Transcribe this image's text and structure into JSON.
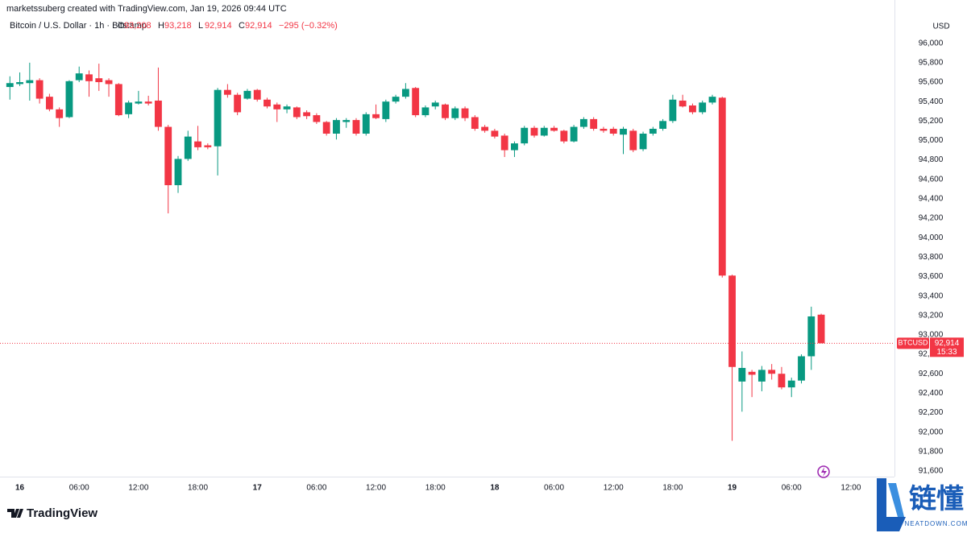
{
  "chart_data": {
    "type": "candlestick",
    "credit": "marketssuberg created with TradingView.com, Jan 19, 2026 09:44 UTC",
    "symbol_line": "Bitcoin / U.S. Dollar · 1h · Bitstamp",
    "ohlc_header": [
      {
        "name": "O",
        "value": 93208,
        "label": "93,208"
      },
      {
        "name": "H",
        "value": 93218,
        "label": "93,218"
      },
      {
        "name": "L",
        "value": 92914,
        "label": "92,914"
      },
      {
        "name": "C",
        "value": 92914,
        "label": "92,914"
      }
    ],
    "change": "−295 (−0.32%)",
    "y_unit": "USD",
    "up_color": "#089981",
    "down_color": "#f23645",
    "grid": false,
    "x": [
      "2026-01-15T23:00",
      "2026-01-16T00:00",
      "2026-01-16T01:00",
      "2026-01-16T02:00",
      "2026-01-16T03:00",
      "2026-01-16T04:00",
      "2026-01-16T05:00",
      "2026-01-16T06:00",
      "2026-01-16T07:00",
      "2026-01-16T08:00",
      "2026-01-16T09:00",
      "2026-01-16T10:00",
      "2026-01-16T11:00",
      "2026-01-16T12:00",
      "2026-01-16T13:00",
      "2026-01-16T14:00",
      "2026-01-16T15:00",
      "2026-01-16T16:00",
      "2026-01-16T17:00",
      "2026-01-16T18:00",
      "2026-01-16T19:00",
      "2026-01-16T20:00",
      "2026-01-16T21:00",
      "2026-01-16T22:00",
      "2026-01-16T23:00",
      "2026-01-17T00:00",
      "2026-01-17T01:00",
      "2026-01-17T02:00",
      "2026-01-17T03:00",
      "2026-01-17T04:00",
      "2026-01-17T05:00",
      "2026-01-17T06:00",
      "2026-01-17T07:00",
      "2026-01-17T08:00",
      "2026-01-17T09:00",
      "2026-01-17T10:00",
      "2026-01-17T11:00",
      "2026-01-17T12:00",
      "2026-01-17T13:00",
      "2026-01-17T14:00",
      "2026-01-17T15:00",
      "2026-01-17T16:00",
      "2026-01-17T17:00",
      "2026-01-17T18:00",
      "2026-01-17T19:00",
      "2026-01-17T20:00",
      "2026-01-17T21:00",
      "2026-01-17T22:00",
      "2026-01-17T23:00",
      "2026-01-18T00:00",
      "2026-01-18T01:00",
      "2026-01-18T02:00",
      "2026-01-18T03:00",
      "2026-01-18T04:00",
      "2026-01-18T05:00",
      "2026-01-18T06:00",
      "2026-01-18T07:00",
      "2026-01-18T08:00",
      "2026-01-18T09:00",
      "2026-01-18T10:00",
      "2026-01-18T11:00",
      "2026-01-18T12:00",
      "2026-01-18T13:00",
      "2026-01-18T14:00",
      "2026-01-18T15:00",
      "2026-01-18T16:00",
      "2026-01-18T17:00",
      "2026-01-18T18:00",
      "2026-01-18T19:00",
      "2026-01-18T20:00",
      "2026-01-18T21:00",
      "2026-01-18T22:00",
      "2026-01-18T23:00",
      "2026-01-19T00:00",
      "2026-01-19T01:00",
      "2026-01-19T02:00",
      "2026-01-19T03:00",
      "2026-01-19T04:00",
      "2026-01-19T05:00",
      "2026-01-19T06:00",
      "2026-01-19T07:00",
      "2026-01-19T08:00",
      "2026-01-19T09:00"
    ],
    "open": [
      95550,
      95580,
      95590,
      95620,
      95450,
      95320,
      95240,
      95620,
      95680,
      95640,
      95620,
      95580,
      95270,
      95380,
      95400,
      95410,
      95140,
      94540,
      94810,
      94990,
      94950,
      94940,
      95520,
      95470,
      95430,
      95520,
      95420,
      95370,
      95320,
      95340,
      95290,
      95260,
      95190,
      95070,
      95190,
      95210,
      95070,
      95270,
      95220,
      95400,
      95450,
      95540,
      95260,
      95350,
      95370,
      95230,
      95330,
      95240,
      95140,
      95100,
      95050,
      94900,
      94970,
      95130,
      95050,
      95130,
      95100,
      94990,
      95140,
      95220,
      95120,
      95120,
      95060,
      95100,
      94910,
      95070,
      95120,
      95200,
      95410,
      95360,
      95290,
      95390,
      95440,
      93610,
      92520,
      92620,
      92520,
      92640,
      92600,
      92460,
      92530,
      92780,
      93208
    ],
    "high": [
      95660,
      95700,
      95800,
      95640,
      95480,
      95340,
      95620,
      95760,
      95720,
      95790,
      95640,
      95590,
      95410,
      95510,
      95460,
      95750,
      95160,
      94840,
      95100,
      95150,
      94970,
      95540,
      95580,
      95490,
      95530,
      95530,
      95440,
      95390,
      95370,
      95350,
      95310,
      95280,
      95200,
      95230,
      95230,
      95230,
      95290,
      95370,
      95420,
      95470,
      95590,
      95550,
      95360,
      95410,
      95380,
      95350,
      95350,
      95260,
      95160,
      95120,
      95070,
      94990,
      95150,
      95150,
      95150,
      95150,
      95110,
      95160,
      95240,
      95240,
      95140,
      95140,
      95140,
      95120,
      95090,
      95140,
      95220,
      95470,
      95470,
      95380,
      95410,
      95470,
      95450,
      93620,
      92830,
      92640,
      92680,
      92700,
      92670,
      92560,
      92800,
      93290,
      93218
    ],
    "low": [
      95420,
      95560,
      95410,
      95380,
      95300,
      95140,
      95230,
      95600,
      95450,
      95510,
      95450,
      95250,
      95230,
      95370,
      95360,
      95100,
      94250,
      94460,
      94790,
      94900,
      94910,
      94640,
      95440,
      95260,
      95420,
      95400,
      95330,
      95190,
      95280,
      95220,
      95220,
      95170,
      95050,
      95010,
      95130,
      95050,
      95050,
      95220,
      95190,
      95380,
      95430,
      95240,
      95240,
      95320,
      95210,
      95210,
      95200,
      95100,
      95080,
      95020,
      94830,
      94830,
      94950,
      95030,
      95040,
      95090,
      94970,
      94980,
      95120,
      95100,
      95080,
      95050,
      94860,
      94880,
      94890,
      95050,
      95100,
      95180,
      95340,
      95270,
      95270,
      95370,
      93590,
      91910,
      92210,
      92360,
      92420,
      92540,
      92440,
      92360,
      92500,
      92640,
      92914
    ],
    "close": [
      95590,
      95600,
      95620,
      95430,
      95320,
      95230,
      95610,
      95690,
      95610,
      95600,
      95580,
      95260,
      95390,
      95400,
      95380,
      95140,
      94540,
      94810,
      95040,
      94930,
      94930,
      95520,
      95470,
      95290,
      95510,
      95420,
      95350,
      95320,
      95350,
      95240,
      95250,
      95190,
      95070,
      95210,
      95210,
      95070,
      95270,
      95230,
      95400,
      95450,
      95530,
      95260,
      95340,
      95390,
      95230,
      95330,
      95230,
      95120,
      95100,
      95040,
      94900,
      94970,
      95130,
      95050,
      95130,
      95100,
      94990,
      95140,
      95220,
      95120,
      95100,
      95070,
      95120,
      94900,
      95070,
      95120,
      95200,
      95420,
      95350,
      95290,
      95390,
      95450,
      93610,
      92670,
      92660,
      92590,
      92640,
      92600,
      92460,
      92530,
      92780,
      93190,
      92914
    ],
    "xlim": [
      "2026-01-15T22:00",
      "2026-01-19T16:00"
    ],
    "xticks": [
      {
        "value": "2026-01-16T00:00",
        "label": "16"
      },
      {
        "value": "2026-01-16T06:00",
        "label": "06:00"
      },
      {
        "value": "2026-01-16T12:00",
        "label": "12:00"
      },
      {
        "value": "2026-01-16T18:00",
        "label": "18:00"
      },
      {
        "value": "2026-01-17T00:00",
        "label": "17"
      },
      {
        "value": "2026-01-17T06:00",
        "label": "06:00"
      },
      {
        "value": "2026-01-17T12:00",
        "label": "12:00"
      },
      {
        "value": "2026-01-17T18:00",
        "label": "18:00"
      },
      {
        "value": "2026-01-18T00:00",
        "label": "18"
      },
      {
        "value": "2026-01-18T06:00",
        "label": "06:00"
      },
      {
        "value": "2026-01-18T12:00",
        "label": "12:00"
      },
      {
        "value": "2026-01-18T18:00",
        "label": "18:00"
      },
      {
        "value": "2026-01-19T00:00",
        "label": "19"
      },
      {
        "value": "2026-01-19T06:00",
        "label": "06:00"
      },
      {
        "value": "2026-01-19T12:00",
        "label": "12:00"
      }
    ],
    "ylim": [
      91550,
      96300
    ],
    "yticks": [
      {
        "value": 91600,
        "label": "91,600"
      },
      {
        "value": 91800,
        "label": "91,800"
      },
      {
        "value": 92000,
        "label": "92,000"
      },
      {
        "value": 92200,
        "label": "92,200"
      },
      {
        "value": 92400,
        "label": "92,400"
      },
      {
        "value": 92600,
        "label": "92,600"
      },
      {
        "value": 92800,
        "label": "92,800"
      },
      {
        "value": 93000,
        "label": "93,000"
      },
      {
        "value": 93200,
        "label": "93,200"
      },
      {
        "value": 93400,
        "label": "93,400"
      },
      {
        "value": 93600,
        "label": "93,600"
      },
      {
        "value": 93800,
        "label": "93,800"
      },
      {
        "value": 94000,
        "label": "94,000"
      },
      {
        "value": 94200,
        "label": "94,200"
      },
      {
        "value": 94400,
        "label": "94,400"
      },
      {
        "value": 94600,
        "label": "94,600"
      },
      {
        "value": 94800,
        "label": "94,800"
      },
      {
        "value": 95000,
        "label": "95,000"
      },
      {
        "value": 95200,
        "label": "95,200"
      },
      {
        "value": 95400,
        "label": "95,400"
      },
      {
        "value": 95600,
        "label": "95,600"
      },
      {
        "value": 95800,
        "label": "95,800"
      },
      {
        "value": 96000,
        "label": "96,000"
      }
    ],
    "last_price": {
      "symbol": "BTCUSD",
      "value": 92914,
      "label": "92,914",
      "countdown": "15:33"
    },
    "logo": "TradingView",
    "watermark": "链懂",
    "watermark_sub": "NEATDOWN.COM"
  }
}
